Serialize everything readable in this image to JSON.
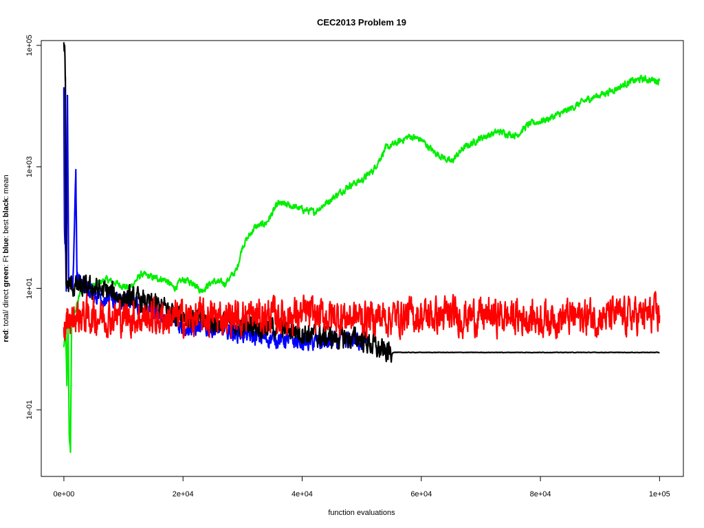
{
  "chart_data": {
    "type": "line",
    "title": "CEC2013 Problem  19",
    "xlabel": "function evaluations",
    "ylabel_parts": [
      {
        "text": "red",
        "bold": true
      },
      {
        "text": ": total/ direct ",
        "bold": false
      },
      {
        "text": "green",
        "bold": true
      },
      {
        "text": ": Ft ",
        "bold": false
      },
      {
        "text": "blue",
        "bold": true
      },
      {
        "text": ": best ",
        "bold": false
      },
      {
        "text": "black",
        "bold": true
      },
      {
        "text": ": mean",
        "bold": false
      }
    ],
    "y_scale": "log",
    "xlim": [
      -3800,
      104000
    ],
    "ylim": [
      0.008,
      120000
    ],
    "x_ticks": [
      {
        "value": 0,
        "label": "0e+00"
      },
      {
        "value": 20000,
        "label": "2e+04"
      },
      {
        "value": 40000,
        "label": "4e+04"
      },
      {
        "value": 60000,
        "label": "6e+04"
      },
      {
        "value": 80000,
        "label": "8e+04"
      },
      {
        "value": 100000,
        "label": "1e+05"
      }
    ],
    "y_ticks": [
      {
        "value": 0.1,
        "label": "1e-01"
      },
      {
        "value": 10,
        "label": "1e+01"
      },
      {
        "value": 1000,
        "label": "1e+03"
      },
      {
        "value": 100000,
        "label": "1e+05"
      }
    ],
    "grid": false,
    "series": [
      {
        "color": "#00ee00",
        "noise": 0.03,
        "points": [
          [
            0,
            1.1
          ],
          [
            300,
            2.2
          ],
          [
            500,
            0.25
          ],
          [
            700,
            3
          ],
          [
            900,
            0.04
          ],
          [
            1100,
            0.02
          ],
          [
            1300,
            2.5
          ],
          [
            1800,
            4
          ],
          [
            3000,
            10
          ],
          [
            5000,
            11
          ],
          [
            7000,
            14
          ],
          [
            9000,
            12
          ],
          [
            11000,
            10
          ],
          [
            13000,
            17
          ],
          [
            15000,
            15
          ],
          [
            17000,
            14
          ],
          [
            18500,
            10
          ],
          [
            20000,
            14
          ],
          [
            22000,
            12
          ],
          [
            23000,
            9
          ],
          [
            25000,
            13
          ],
          [
            27000,
            12
          ],
          [
            29000,
            20
          ],
          [
            30000,
            50
          ],
          [
            32000,
            100
          ],
          [
            34000,
            120
          ],
          [
            36000,
            250
          ],
          [
            38000,
            230
          ],
          [
            40000,
            200
          ],
          [
            42000,
            180
          ],
          [
            45000,
            300
          ],
          [
            48000,
            500
          ],
          [
            50000,
            600
          ],
          [
            52000,
            900
          ],
          [
            54000,
            2000
          ],
          [
            56000,
            2500
          ],
          [
            58000,
            3200
          ],
          [
            60000,
            2800
          ],
          [
            62000,
            1800
          ],
          [
            65000,
            1200
          ],
          [
            67000,
            2000
          ],
          [
            70000,
            3000
          ],
          [
            73000,
            3800
          ],
          [
            76000,
            3300
          ],
          [
            78000,
            5000
          ],
          [
            81000,
            6000
          ],
          [
            84000,
            8000
          ],
          [
            88000,
            13000
          ],
          [
            92000,
            18000
          ],
          [
            95000,
            25000
          ],
          [
            97000,
            28000
          ],
          [
            100000,
            26000
          ]
        ]
      },
      {
        "color": "#0000ff",
        "noise": 0.08,
        "points": [
          [
            0,
            20000
          ],
          [
            100,
            100
          ],
          [
            300,
            50
          ],
          [
            400,
            9
          ],
          [
            600,
            15000
          ],
          [
            800,
            10
          ],
          [
            1000,
            12
          ],
          [
            1500,
            10
          ],
          [
            2000,
            900
          ],
          [
            2200,
            15
          ],
          [
            3000,
            12
          ],
          [
            5000,
            8
          ],
          [
            7000,
            7
          ],
          [
            9000,
            6
          ],
          [
            11000,
            6
          ],
          [
            13000,
            5
          ],
          [
            15000,
            4
          ],
          [
            17000,
            3.5
          ],
          [
            19000,
            2.5
          ],
          [
            21000,
            2.3
          ],
          [
            25000,
            2.2
          ],
          [
            30000,
            1.8
          ],
          [
            33000,
            1.5
          ],
          [
            36000,
            1.5
          ],
          [
            40000,
            1.3
          ],
          [
            42000,
            1.3
          ],
          [
            45000,
            1.3
          ],
          [
            48000,
            1.4
          ],
          [
            50000,
            1.4
          ],
          [
            51000,
            1.3
          ]
        ]
      },
      {
        "color": "#000000",
        "noise": 0.1,
        "points": [
          [
            0,
            110000
          ],
          [
            100,
            100000
          ],
          [
            250,
            30000
          ],
          [
            400,
            12
          ],
          [
            600,
            11
          ],
          [
            1000,
            11
          ],
          [
            3000,
            10
          ],
          [
            5000,
            10
          ],
          [
            7000,
            9
          ],
          [
            10000,
            7
          ],
          [
            13000,
            6
          ],
          [
            16000,
            5
          ],
          [
            19000,
            4
          ],
          [
            22000,
            3
          ],
          [
            25000,
            2.8
          ],
          [
            28000,
            2.6
          ],
          [
            31000,
            2.5
          ],
          [
            34000,
            2.4
          ],
          [
            37000,
            2.2
          ],
          [
            40000,
            1.9
          ],
          [
            43000,
            1.6
          ],
          [
            46000,
            1.5
          ],
          [
            48000,
            1.5
          ],
          [
            50000,
            1.5
          ],
          [
            51500,
            1.2
          ],
          [
            53000,
            0.95
          ],
          [
            54000,
            0.9
          ],
          [
            56000,
            0.88
          ],
          [
            100000,
            0.88
          ]
        ]
      },
      {
        "color": "#ff0000",
        "noise": 0.16,
        "points": [
          [
            0,
            2
          ],
          [
            500,
            2.2
          ],
          [
            1000,
            3
          ],
          [
            2000,
            3.5
          ],
          [
            5000,
            3.5
          ],
          [
            10000,
            3.4
          ],
          [
            15000,
            3.3
          ],
          [
            20000,
            3.2
          ],
          [
            30000,
            3.4
          ],
          [
            40000,
            3.6
          ],
          [
            50000,
            3.3
          ],
          [
            60000,
            3.5
          ],
          [
            70000,
            3.5
          ],
          [
            80000,
            3.3
          ],
          [
            90000,
            3.4
          ],
          [
            100000,
            3.6
          ]
        ]
      }
    ]
  }
}
